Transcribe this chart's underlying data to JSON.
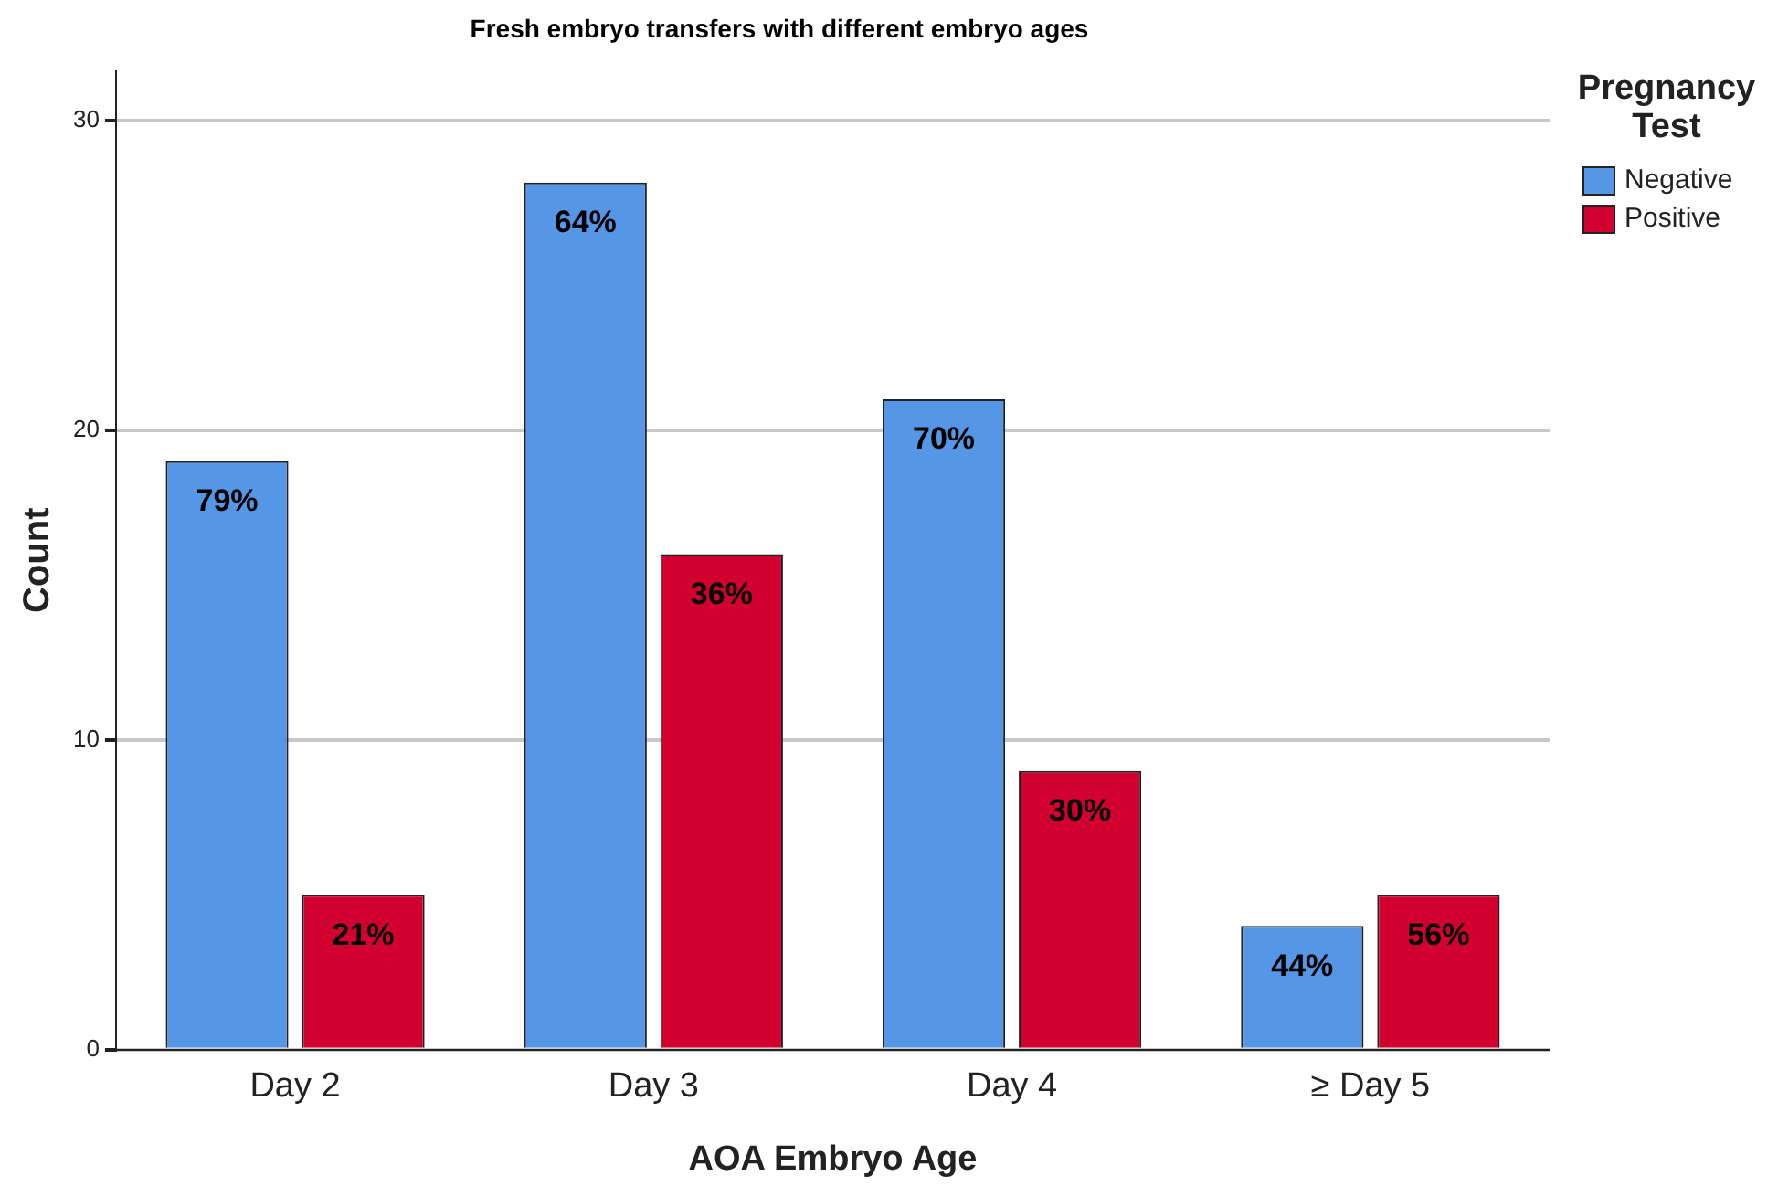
{
  "chart_data": {
    "type": "bar",
    "title": "Fresh embryo transfers with different embryo ages",
    "xlabel": "AOA Embryo Age",
    "ylabel": "Count",
    "legend_title": "Pregnancy Test",
    "categories": [
      "Day 2",
      "Day 3",
      "Day 4",
      "≥ Day 5"
    ],
    "series": [
      {
        "name": "Negative",
        "color": "#5596e6",
        "values": [
          19,
          28,
          21,
          4
        ]
      },
      {
        "name": "Positive",
        "color": "#d1002f",
        "values": [
          5,
          16,
          9,
          5
        ]
      }
    ],
    "annotations": [
      {
        "text": "79%",
        "x": "Day 2",
        "y": 19
      },
      {
        "text": "21%",
        "x": "Day 2",
        "y": 5
      },
      {
        "text": "64%",
        "x": "Day 3",
        "y": 28
      },
      {
        "text": "36%",
        "x": "Day 3",
        "y": 16
      },
      {
        "text": "70%",
        "x": "Day 4",
        "y": 21
      },
      {
        "text": "30%",
        "x": "Day 4",
        "y": 9
      },
      {
        "text": "44%",
        "x": "≥ Day 5",
        "y": 4
      },
      {
        "text": "56%",
        "x": "≥ Day 5",
        "y": 5
      }
    ],
    "ylim": [
      0,
      31.6
    ],
    "yticks": [
      0,
      10,
      20,
      30
    ],
    "grid": "y",
    "legend": "top right"
  }
}
